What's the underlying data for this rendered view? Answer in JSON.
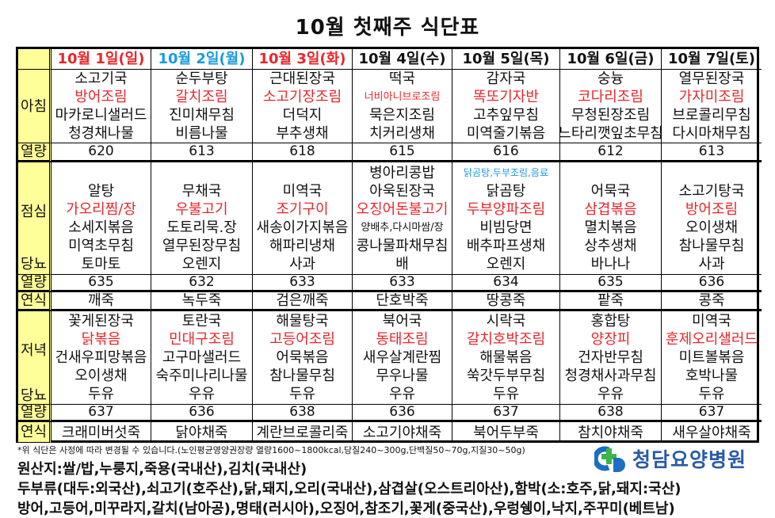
{
  "title": "10월 첫째주 식단표",
  "labels": {
    "breakfast": "아침",
    "calorie": "열량",
    "lunch": "점심",
    "diabetic": "당뇨",
    "soft": "연식",
    "dinner": "저녁"
  },
  "colors": {
    "highlight": "#e8262b",
    "weekday_blue": "#1a9be0",
    "label_bg": "#ffff99",
    "logo": "#2a5aa8"
  },
  "days": [
    {
      "date": "10월 1일(일)",
      "date_color": "red",
      "breakfast": [
        {
          "t": "소고기국"
        },
        {
          "t": "방어조림",
          "c": "red"
        },
        {
          "t": "마카로니샐러드"
        },
        {
          "t": "청경채나물"
        }
      ],
      "breakfast_kcal": "620",
      "lunch": [
        {
          "t": ""
        },
        {
          "t": "알탕"
        },
        {
          "t": "가오리찜/장",
          "c": "red"
        },
        {
          "t": "소세지볶음"
        },
        {
          "t": "미역초무침"
        },
        {
          "t": "토마토"
        }
      ],
      "lunch_kcal": "635",
      "lunch_soft": "깨죽",
      "dinner": [
        {
          "t": "꽃게된장국"
        },
        {
          "t": "닭볶음",
          "c": "red"
        },
        {
          "t": "건새우피망볶음"
        },
        {
          "t": "오이생채"
        },
        {
          "t": "두유"
        }
      ],
      "dinner_kcal": "637",
      "dinner_soft": "크래미버섯죽"
    },
    {
      "date": "10월 2일(월)",
      "date_color": "blue",
      "breakfast": [
        {
          "t": "순두부탕"
        },
        {
          "t": "갈치조림",
          "c": "red"
        },
        {
          "t": "진미채무침"
        },
        {
          "t": "비름나물"
        }
      ],
      "breakfast_kcal": "613",
      "lunch": [
        {
          "t": ""
        },
        {
          "t": "무채국"
        },
        {
          "t": "우불고기",
          "c": "red"
        },
        {
          "t": "도토리묵.장"
        },
        {
          "t": "열무된장무침"
        },
        {
          "t": "오렌지"
        }
      ],
      "lunch_kcal": "632",
      "lunch_soft": "녹두죽",
      "dinner": [
        {
          "t": "토란국"
        },
        {
          "t": "민대구조림",
          "c": "red"
        },
        {
          "t": "고구마샐러드"
        },
        {
          "t": "숙주미나리나물"
        },
        {
          "t": "우유"
        }
      ],
      "dinner_kcal": "636",
      "dinner_soft": "닭야채죽"
    },
    {
      "date": "10월 3일(화)",
      "date_color": "red",
      "breakfast": [
        {
          "t": "근대된장국"
        },
        {
          "t": "소고기장조림",
          "c": "red"
        },
        {
          "t": "더덕지"
        },
        {
          "t": "부추생채"
        }
      ],
      "breakfast_kcal": "618",
      "lunch": [
        {
          "t": ""
        },
        {
          "t": "미역국"
        },
        {
          "t": "조기구이",
          "c": "red"
        },
        {
          "t": "새송이가지볶음"
        },
        {
          "t": "해파리냉채"
        },
        {
          "t": "사과"
        }
      ],
      "lunch_kcal": "633",
      "lunch_soft": "검은깨죽",
      "dinner": [
        {
          "t": "해물탕국"
        },
        {
          "t": "고등어조림",
          "c": "red"
        },
        {
          "t": "어묵볶음"
        },
        {
          "t": "참나물무침"
        },
        {
          "t": "두유"
        }
      ],
      "dinner_kcal": "638",
      "dinner_soft": "계란브로콜리죽"
    },
    {
      "date": "10월 4일(수)",
      "date_color": "black",
      "breakfast": [
        {
          "t": "떡국"
        },
        {
          "t": "너비아니브로조림",
          "c": "red",
          "s": "tiny"
        },
        {
          "t": "묵은지조림"
        },
        {
          "t": "치커리생채"
        }
      ],
      "breakfast_kcal": "615",
      "lunch": [
        {
          "t": "병아리콩밥"
        },
        {
          "t": "아욱된장국"
        },
        {
          "t": "오징어돈불고기",
          "c": "red"
        },
        {
          "t": "양배추,다시마쌈/장",
          "s": "tiny"
        },
        {
          "t": "콩나물파채무침"
        },
        {
          "t": "배"
        }
      ],
      "lunch_kcal": "633",
      "lunch_soft": "단호박죽",
      "dinner": [
        {
          "t": "북어국"
        },
        {
          "t": "동태조림",
          "c": "red"
        },
        {
          "t": "새우살계란찜"
        },
        {
          "t": "무우나물"
        },
        {
          "t": "우유"
        }
      ],
      "dinner_kcal": "636",
      "dinner_soft": "소고기야채죽"
    },
    {
      "date": "10월 5일(목)",
      "date_color": "black",
      "breakfast": [
        {
          "t": "감자국"
        },
        {
          "t": "똑또기자반",
          "c": "red"
        },
        {
          "t": "고추잎무침"
        },
        {
          "t": "미역줄기볶음"
        }
      ],
      "breakfast_kcal": "616",
      "lunch": [
        {
          "t": "닭곰탕,두부조림,음료",
          "c": "blue",
          "s": "small"
        },
        {
          "t": "닭곰탕"
        },
        {
          "t": "두부양파조림",
          "c": "red"
        },
        {
          "t": "비빔당면"
        },
        {
          "t": "배추파프생채"
        },
        {
          "t": "오렌지"
        }
      ],
      "lunch_kcal": "634",
      "lunch_soft": "땅콩죽",
      "dinner": [
        {
          "t": "시락국"
        },
        {
          "t": "갈치호박조림",
          "c": "red"
        },
        {
          "t": "해물볶음"
        },
        {
          "t": "쑥갓두부무침"
        },
        {
          "t": "두유"
        }
      ],
      "dinner_kcal": "637",
      "dinner_soft": "북어두부죽"
    },
    {
      "date": "10월 6일(금)",
      "date_color": "black",
      "breakfast": [
        {
          "t": "숭늉"
        },
        {
          "t": "코다리조림",
          "c": "red"
        },
        {
          "t": "무청된장조림"
        },
        {
          "t": "느타리깻잎초무침"
        }
      ],
      "breakfast_kcal": "612",
      "lunch": [
        {
          "t": ""
        },
        {
          "t": "어묵국"
        },
        {
          "t": "삼겹볶음",
          "c": "red"
        },
        {
          "t": "멸치볶음"
        },
        {
          "t": "상추생채"
        },
        {
          "t": "바나나"
        }
      ],
      "lunch_kcal": "635",
      "lunch_soft": "팥죽",
      "dinner": [
        {
          "t": "홍합탕"
        },
        {
          "t": "양장피",
          "c": "red"
        },
        {
          "t": "건자반무침"
        },
        {
          "t": "청경채사과무침"
        },
        {
          "t": "우유"
        }
      ],
      "dinner_kcal": "638",
      "dinner_soft": "참치야채죽"
    },
    {
      "date": "10월 7일(토)",
      "date_color": "black",
      "breakfast": [
        {
          "t": "열무된장국"
        },
        {
          "t": "가자미조림",
          "c": "red"
        },
        {
          "t": "브로콜리무침"
        },
        {
          "t": "다시마채무침"
        }
      ],
      "breakfast_kcal": "613",
      "lunch": [
        {
          "t": ""
        },
        {
          "t": "소고기탕국"
        },
        {
          "t": "방어조림",
          "c": "red"
        },
        {
          "t": "오이생채"
        },
        {
          "t": "참나물무침"
        },
        {
          "t": "사과"
        }
      ],
      "lunch_kcal": "636",
      "lunch_soft": "콩죽",
      "dinner": [
        {
          "t": "미역국"
        },
        {
          "t": "훈제오리샐러드",
          "c": "red"
        },
        {
          "t": "미트볼볶음"
        },
        {
          "t": "호박나물"
        },
        {
          "t": "두유"
        }
      ],
      "dinner_kcal": "637",
      "dinner_soft": "새우살야채죽"
    }
  ],
  "footer": {
    "note": "*위 식단은 사정에 따라 변경될 수 있습니다.(노인평균영양권장량 열량1600~1800kcal,당질240~300g,단백질50~70g,지질30~50g)",
    "origin1": "원산지:쌀/밥,누룽지,죽용(국내산),김치(국내산)",
    "origin2": "두부류(대두:외국산),쇠고기(호주산),닭,돼지,오리(국내산),삼겹살(오스트리아산),함박(소:호주,닭,돼지:국산)",
    "origin3": "방어,고등어,미꾸라지,갈치(남아공),명태(러시아),오징어,참조기,꽃게(중국산),우렁쉥이,낙지,주꾸미(베트남)"
  },
  "logo": {
    "text": "청담요양병원",
    "icon": "cd-cross-logo"
  }
}
